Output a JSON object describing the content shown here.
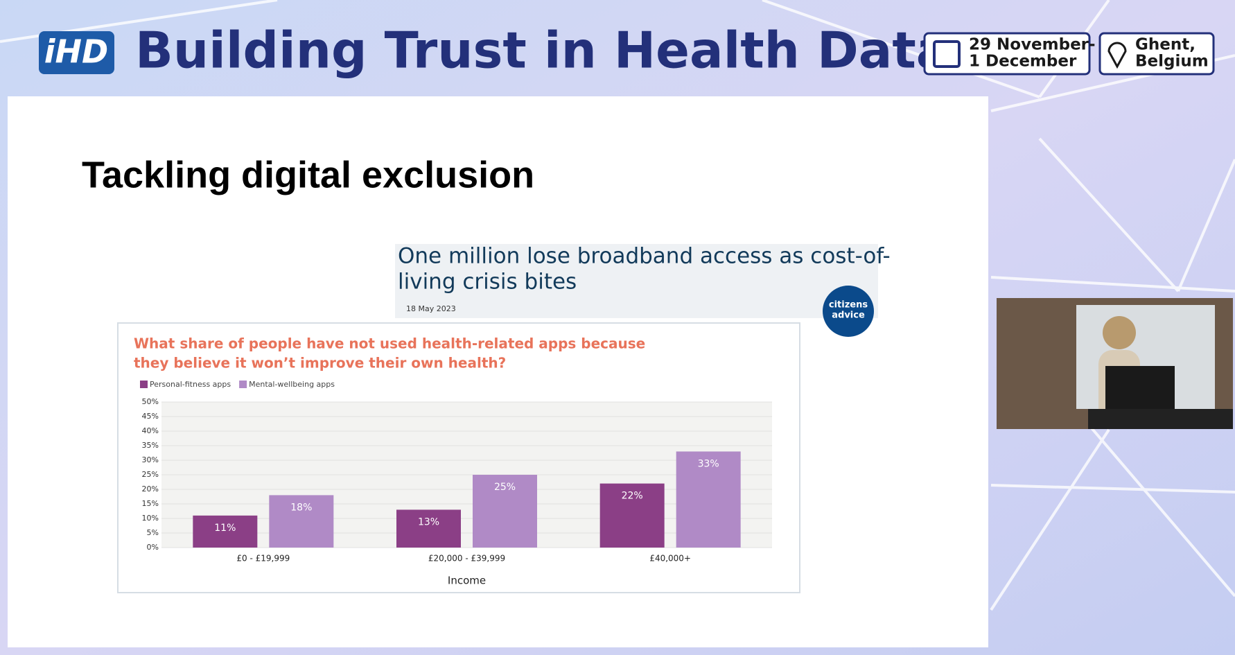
{
  "header": {
    "logo": "iHD",
    "title": "Building Trust in Health Data",
    "dates": [
      "29 November-",
      "1 December"
    ],
    "location": [
      "Ghent,",
      "Belgium"
    ]
  },
  "slide": {
    "title": "Tackling digital exclusion",
    "headline": [
      "One million lose broadband access as cost-of-",
      "living crisis bites"
    ],
    "date": "18 May 2023",
    "source": [
      "citizens",
      "advice"
    ]
  },
  "chart_data": {
    "type": "bar",
    "title": [
      "What share of people have not used health-related apps because",
      "they believe it won’t improve their own health?"
    ],
    "x_label": "Income",
    "categories": [
      "£0 - £19,999",
      "£20,000 - £39,999",
      "£40,000+"
    ],
    "series": [
      {
        "name": "Personal-fitness apps",
        "color": "#8b3f86",
        "values": [
          11,
          13,
          22
        ],
        "value_labels": [
          "11%",
          "13%",
          "22%"
        ]
      },
      {
        "name": "Mental-wellbeing apps",
        "color": "#b08ac6",
        "values": [
          18,
          25,
          33
        ],
        "value_labels": [
          "18%",
          "25%",
          "33%"
        ]
      }
    ],
    "ylim": [
      0,
      50
    ],
    "yticks": [
      {
        "value": 0,
        "label": "0%"
      },
      {
        "value": 5,
        "label": "5%"
      },
      {
        "value": 10,
        "label": "10%"
      },
      {
        "value": 15,
        "label": "15%"
      },
      {
        "value": 20,
        "label": "20%"
      },
      {
        "value": 25,
        "label": "25%"
      },
      {
        "value": 30,
        "label": "30%"
      },
      {
        "value": 35,
        "label": "35%"
      },
      {
        "value": 40,
        "label": "40%"
      },
      {
        "value": 45,
        "label": "45%"
      },
      {
        "value": 50,
        "label": "50%"
      }
    ],
    "grid": true
  }
}
